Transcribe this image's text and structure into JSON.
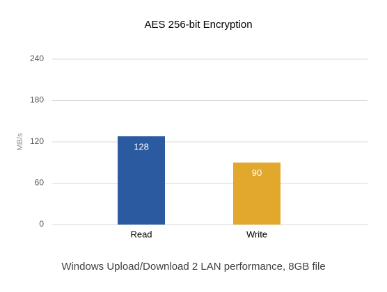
{
  "chart_data": {
    "type": "bar",
    "title": "AES 256-bit Encryption",
    "ylabel": "MB/s",
    "xlabel": "Windows Upload/Download 2 LAN performance, 8GB file",
    "categories": [
      "Read",
      "Write"
    ],
    "values": [
      128,
      90
    ],
    "colors": [
      "#2b5aa0",
      "#e2a82d"
    ],
    "ylim": [
      0,
      240
    ],
    "yticks": [
      0,
      60,
      120,
      180,
      240
    ],
    "grid": true
  }
}
